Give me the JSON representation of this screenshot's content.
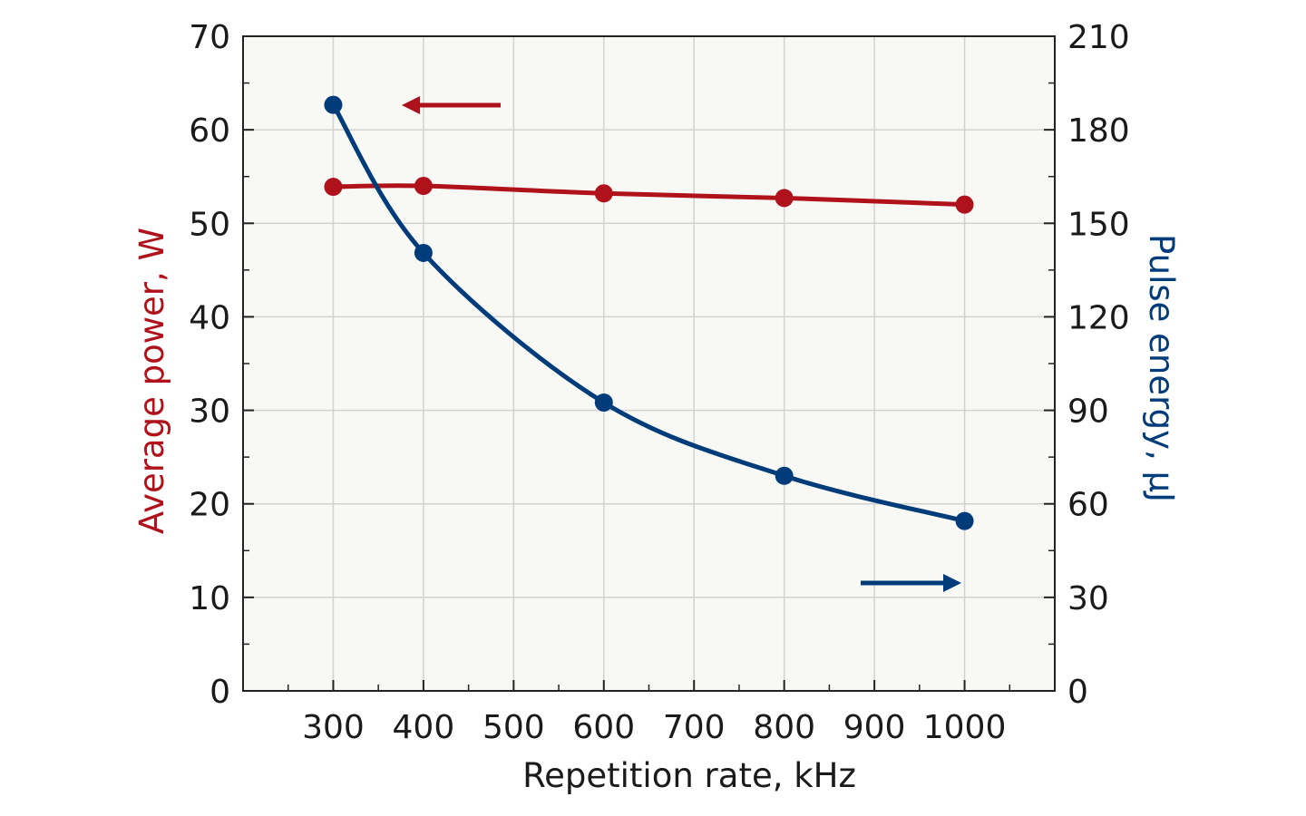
{
  "chart_data": {
    "type": "line",
    "title": "",
    "xlabel": "Repetition rate, kHz",
    "ylabel": "Average power, W",
    "y2label": "Pulse energy, μJ",
    "xlim": [
      200,
      1100
    ],
    "ylim": [
      0,
      70
    ],
    "y2lim": [
      0,
      210
    ],
    "x_ticks": [
      300,
      400,
      500,
      600,
      700,
      800,
      900,
      1000
    ],
    "y_ticks": [
      0,
      10,
      20,
      30,
      40,
      50,
      60,
      70
    ],
    "y2_ticks": [
      0,
      30,
      60,
      90,
      120,
      150,
      180,
      210
    ],
    "grid": true,
    "series": [
      {
        "axis": "left",
        "color": "#b0121b",
        "x": [
          300,
          400,
          600,
          800,
          1000
        ],
        "values": [
          53.9,
          54.0,
          53.2,
          52.7,
          52.0
        ]
      },
      {
        "axis": "right",
        "color": "#003b7a",
        "x": [
          300,
          400,
          600,
          800,
          1000
        ],
        "values": [
          188,
          140.5,
          92.5,
          69,
          54.5
        ]
      }
    ],
    "annotations": [
      {
        "type": "arrow",
        "direction": "left",
        "series_axis": "left",
        "color": "#b0121b"
      },
      {
        "type": "arrow",
        "direction": "right",
        "series_axis": "right",
        "color": "#003b7a"
      }
    ]
  }
}
